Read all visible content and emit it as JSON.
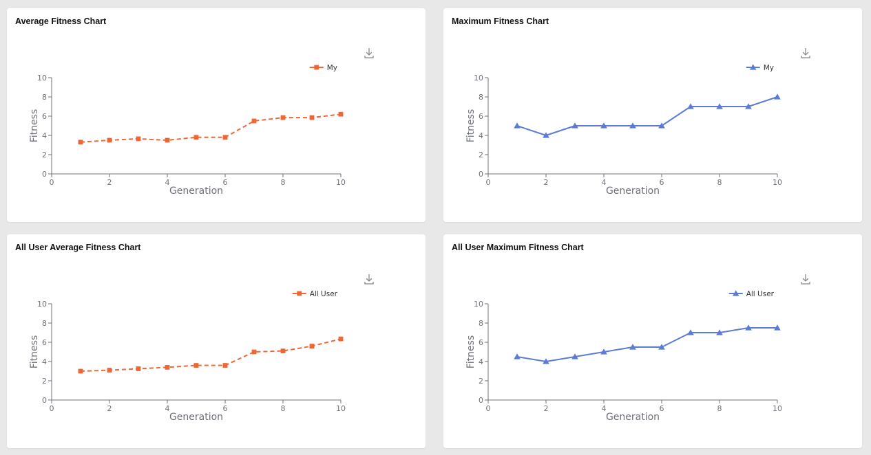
{
  "charts": [
    {
      "title": "Average Fitness Chart",
      "chart_data": {
        "type": "line",
        "xlabel": "Generation",
        "ylabel": "Fitness",
        "xlim": [
          0,
          10
        ],
        "ylim": [
          0,
          10
        ],
        "xticks": [
          0,
          2,
          4,
          6,
          8,
          10
        ],
        "yticks": [
          0,
          2,
          4,
          6,
          8,
          10
        ],
        "legend_position": "top-right",
        "series": [
          {
            "name": "My",
            "marker": "square",
            "line_style": "dashed",
            "color": "#ee6633",
            "x": [
              1,
              2,
              3,
              4,
              5,
              6,
              7,
              8,
              9,
              10
            ],
            "y": [
              3.3,
              3.5,
              3.65,
              3.5,
              3.8,
              3.8,
              5.5,
              5.85,
              5.85,
              6.2
            ]
          }
        ]
      }
    },
    {
      "title": "Maximum Fitness Chart",
      "chart_data": {
        "type": "line",
        "xlabel": "Generation",
        "ylabel": "Fitness",
        "xlim": [
          0,
          10
        ],
        "ylim": [
          0,
          10
        ],
        "xticks": [
          0,
          2,
          4,
          6,
          8,
          10
        ],
        "yticks": [
          0,
          2,
          4,
          6,
          8,
          10
        ],
        "legend_position": "top-right",
        "series": [
          {
            "name": "My",
            "marker": "triangle",
            "line_style": "solid",
            "color": "#5b7bd5",
            "x": [
              1,
              2,
              3,
              4,
              5,
              6,
              7,
              8,
              9,
              10
            ],
            "y": [
              5,
              4,
              5,
              5,
              5,
              5,
              7,
              7,
              7,
              8
            ]
          }
        ]
      }
    },
    {
      "title": "All User Average Fitness Chart",
      "chart_data": {
        "type": "line",
        "xlabel": "Generation",
        "ylabel": "Fitness",
        "xlim": [
          0,
          10
        ],
        "ylim": [
          0,
          10
        ],
        "xticks": [
          0,
          2,
          4,
          6,
          8,
          10
        ],
        "yticks": [
          0,
          2,
          4,
          6,
          8,
          10
        ],
        "legend_position": "top-right",
        "series": [
          {
            "name": "All User",
            "marker": "square",
            "line_style": "dashed",
            "color": "#ee6633",
            "x": [
              1,
              2,
              3,
              4,
              5,
              6,
              7,
              8,
              9,
              10
            ],
            "y": [
              3.0,
              3.1,
              3.25,
              3.4,
              3.6,
              3.6,
              5.0,
              5.1,
              5.6,
              6.35
            ]
          }
        ]
      }
    },
    {
      "title": "All User Maximum Fitness Chart",
      "chart_data": {
        "type": "line",
        "xlabel": "Generation",
        "ylabel": "Fitness",
        "xlim": [
          0,
          10
        ],
        "ylim": [
          0,
          10
        ],
        "xticks": [
          0,
          2,
          4,
          6,
          8,
          10
        ],
        "yticks": [
          0,
          2,
          4,
          6,
          8,
          10
        ],
        "legend_position": "top-right",
        "series": [
          {
            "name": "All User",
            "marker": "triangle",
            "line_style": "solid",
            "color": "#5b7bd5",
            "x": [
              1,
              2,
              3,
              4,
              5,
              6,
              7,
              8,
              9,
              10
            ],
            "y": [
              4.5,
              4.0,
              4.5,
              5.0,
              5.5,
              5.5,
              7.0,
              7.0,
              7.5,
              7.5
            ]
          }
        ]
      }
    }
  ],
  "icons": {
    "download": "download-icon"
  }
}
